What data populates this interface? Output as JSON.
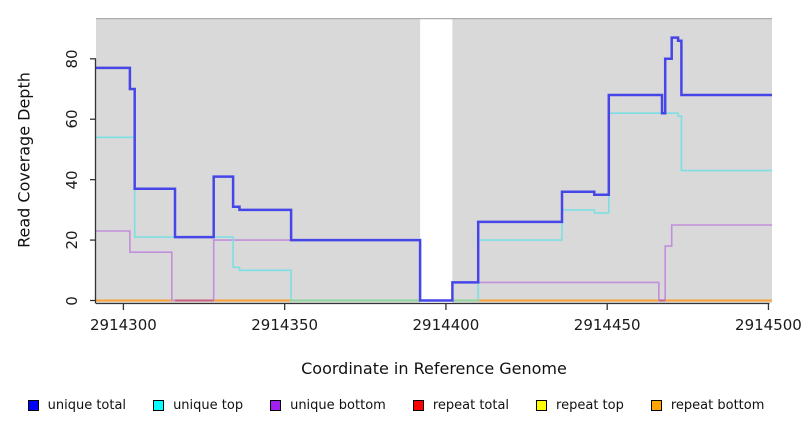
{
  "chart_data": {
    "type": "line",
    "subtype": "step-coverage-plot",
    "title": "",
    "xlabel": "Coordinate in Reference Genome",
    "ylabel": "Read Coverage Depth",
    "xlim": [
      2914291.5,
      2914501.1
    ],
    "ylim": [
      0,
      93.5
    ],
    "x_ticks": [
      2914300,
      2914350,
      2914400,
      2914450,
      2914500
    ],
    "x_tick_labels": [
      "2914300",
      "2914350",
      "2914400",
      "2914450",
      "2914500"
    ],
    "y_ticks": [
      0,
      20,
      40,
      60,
      80
    ],
    "y_tick_labels": [
      "0",
      "20",
      "40",
      "60",
      "80"
    ],
    "grid": false,
    "legend_position": "bottom",
    "panel_bg": "#D9D9D9",
    "panel_top_border": "#AEAEAE",
    "axis_color": "#333333",
    "gap_region": {
      "x1": 2914392,
      "x2": 2914402,
      "color": "#FFFFFF"
    },
    "series": [
      {
        "name": "repeat total",
        "color": "#DD2222",
        "width": 1.6,
        "points": [
          [
            2914291.5,
            0
          ]
        ]
      },
      {
        "name": "repeat top",
        "color": "#EEEE44",
        "width": 1.6,
        "points": [
          [
            2914291.5,
            0
          ]
        ]
      },
      {
        "name": "repeat bottom",
        "color": "#FF9F2F",
        "width": 1.8,
        "points": [
          [
            2914291.5,
            0
          ]
        ]
      },
      {
        "name": "unique bottom",
        "color": "#C18FDB",
        "width": 1.6,
        "points": [
          [
            2914291.5,
            23
          ],
          [
            2914302,
            16
          ],
          [
            2914315,
            0
          ],
          [
            2914328,
            20
          ],
          [
            2914392,
            0
          ],
          [
            2914402,
            6
          ],
          [
            2914466,
            0
          ],
          [
            2914468,
            18
          ],
          [
            2914470,
            25
          ]
        ]
      },
      {
        "name": "unique top",
        "color": "#7DDFE3",
        "width": 1.6,
        "points": [
          [
            2914291.5,
            54
          ],
          [
            2914303.5,
            21
          ],
          [
            2914334,
            11
          ],
          [
            2914336,
            10
          ],
          [
            2914352,
            0
          ],
          [
            2914410,
            20
          ],
          [
            2914436,
            30
          ],
          [
            2914446,
            29
          ],
          [
            2914450.5,
            62
          ],
          [
            2914472,
            61
          ],
          [
            2914473,
            43
          ]
        ]
      },
      {
        "name": "unique total",
        "color": "#4646E8",
        "width": 2.5,
        "points": [
          [
            2914291.5,
            77
          ],
          [
            2914302,
            70
          ],
          [
            2914303.5,
            37
          ],
          [
            2914316,
            21
          ],
          [
            2914328,
            41
          ],
          [
            2914334,
            31
          ],
          [
            2914336,
            30
          ],
          [
            2914352,
            20
          ],
          [
            2914392,
            0
          ],
          [
            2914402,
            6
          ],
          [
            2914410,
            26
          ],
          [
            2914436,
            36
          ],
          [
            2914446,
            35
          ],
          [
            2914450.5,
            68
          ],
          [
            2914467,
            62
          ],
          [
            2914468,
            80
          ],
          [
            2914470,
            87
          ],
          [
            2914472,
            86
          ],
          [
            2914473,
            68
          ]
        ]
      }
    ],
    "baseline_blends": [
      {
        "x1": 2914316,
        "x2": 2914328,
        "color": "#C9617F"
      },
      {
        "x1": 2914352,
        "x2": 2914392,
        "color": "#8FD49B"
      },
      {
        "x1": 2914402,
        "x2": 2914410,
        "color": "#8FD49B"
      },
      {
        "x1": 2914466,
        "x2": 2914468,
        "color": "#C9617F"
      }
    ]
  },
  "legend": {
    "items": [
      {
        "label": "unique total",
        "color": "#0000FF"
      },
      {
        "label": "unique top",
        "color": "#00FFFF"
      },
      {
        "label": "unique bottom",
        "color": "#A020F0"
      },
      {
        "label": "repeat total",
        "color": "#FF0000"
      },
      {
        "label": "repeat top",
        "color": "#FFFF00"
      },
      {
        "label": "repeat bottom",
        "color": "#FFA500"
      }
    ]
  }
}
